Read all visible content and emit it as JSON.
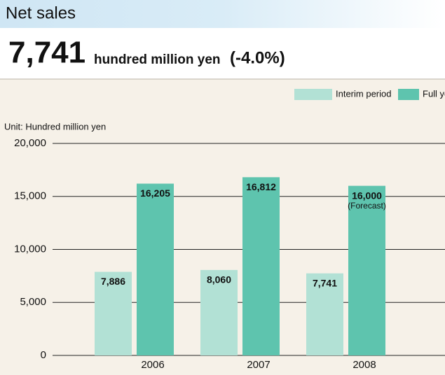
{
  "header": {
    "title": "Net sales"
  },
  "headline": {
    "value": "7,741",
    "unit": "hundred million yen",
    "change": "(-4.0%)"
  },
  "chart_data": {
    "type": "bar",
    "unit_label": "Unit: Hundred million yen",
    "categories": [
      "2006",
      "2007",
      "2008"
    ],
    "series": [
      {
        "name": "Interim period",
        "color": "#b2e1d5",
        "values": [
          7886,
          8060,
          7741
        ],
        "value_labels": [
          "7,886",
          "8,060",
          "7,741"
        ]
      },
      {
        "name": "Full year",
        "color": "#5ec4ae",
        "values": [
          16205,
          16812,
          16000
        ],
        "value_labels": [
          "16,205",
          "16,812",
          "16,000"
        ]
      }
    ],
    "annotation": "(Forecast)",
    "ylim": [
      0,
      20000
    ],
    "yticks": [
      {
        "value": 0,
        "label": "0"
      },
      {
        "value": 5000,
        "label": "5,000"
      },
      {
        "value": 10000,
        "label": "10,000"
      },
      {
        "value": 15000,
        "label": "15,000"
      },
      {
        "value": 20000,
        "label": "20,000"
      }
    ],
    "grid": true,
    "legend": "top-right"
  }
}
